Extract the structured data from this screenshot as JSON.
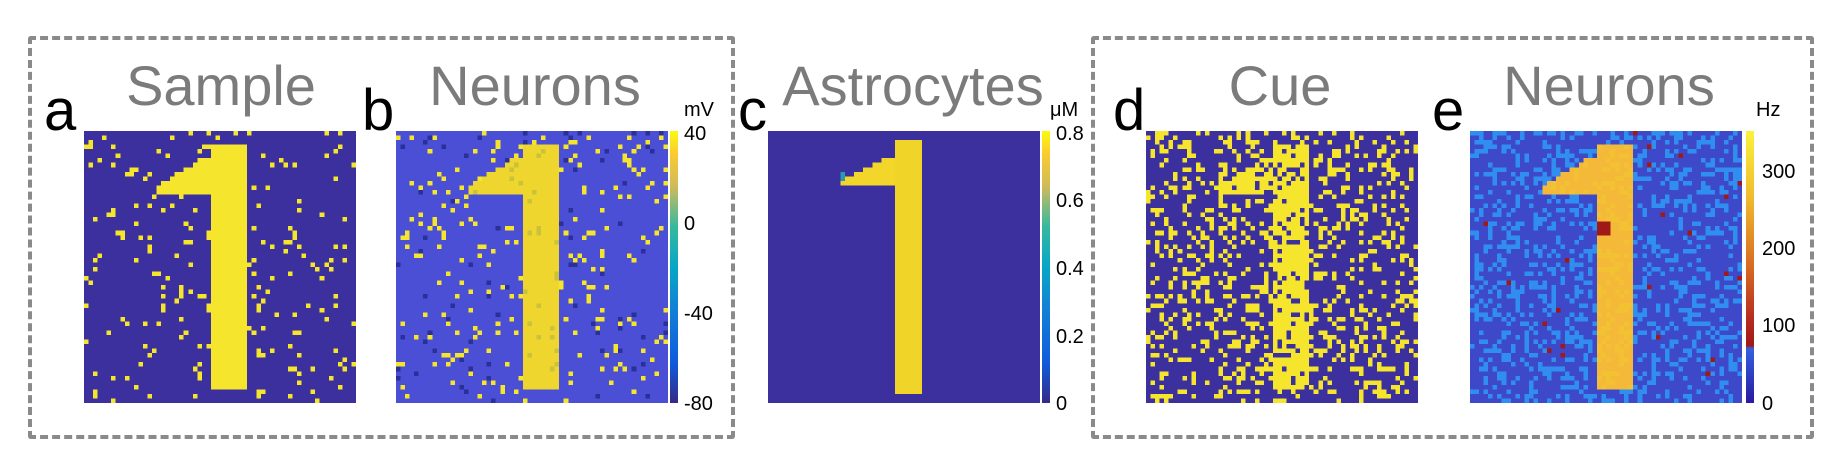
{
  "panels": [
    {
      "id": "a",
      "letter": "a",
      "title": "Sample",
      "pattern": "sample"
    },
    {
      "id": "b",
      "letter": "b",
      "title": "Neurons",
      "pattern": "neurons_mv",
      "colorbar": {
        "unit": "mV",
        "ticks": [
          "40",
          "0",
          "-40",
          "-80"
        ]
      }
    },
    {
      "id": "c",
      "letter": "c",
      "title": "Astrocytes",
      "pattern": "astro",
      "colorbar": {
        "unit": "μM",
        "ticks": [
          "0.8",
          "0.6",
          "0.4",
          "0.2",
          "0"
        ]
      }
    },
    {
      "id": "d",
      "letter": "d",
      "title": "Cue",
      "pattern": "cue"
    },
    {
      "id": "e",
      "letter": "e",
      "title": "Neurons",
      "pattern": "neurons_hz",
      "colorbar": {
        "unit": "Hz",
        "ticks": [
          "300",
          "200",
          "100",
          "0"
        ]
      }
    }
  ],
  "colors": {
    "background_blue": "#3c2f9e",
    "neuron_blue": "#4a4fd6",
    "yellow": "#f5e52c",
    "hz_light_blue": "#2f8ef0",
    "hz_dark_red": "#a01818",
    "frame_gray": "#8a8a8a",
    "title_gray": "#7b7b7b"
  }
}
